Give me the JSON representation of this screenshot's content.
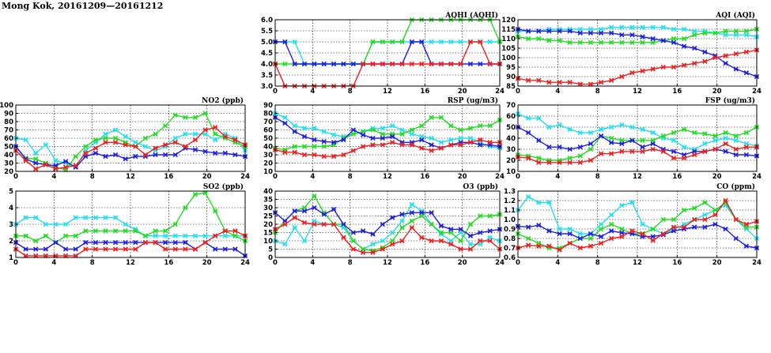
{
  "title": "Mong Kok, 20161209—20161212",
  "colors": {
    "cyan": "#22e0f0",
    "green": "#22dd22",
    "blue": "#2020e0",
    "red": "#ee2020"
  },
  "chart_data": [
    {
      "id": "no2",
      "type": "line",
      "title": "NO2 (ppb)",
      "xlim": [
        0,
        24
      ],
      "ylim": [
        20,
        100
      ],
      "xticks": [
        0,
        4,
        8,
        12,
        16,
        20,
        24
      ],
      "yticks": [
        20,
        30,
        40,
        50,
        60,
        70,
        80,
        90,
        100
      ],
      "grid": true,
      "series": [
        {
          "color": "cyan",
          "values": [
            60,
            58,
            42,
            52,
            33,
            30,
            25,
            45,
            55,
            65,
            70,
            62,
            55,
            50,
            45,
            50,
            60,
            65,
            65,
            65,
            58,
            65,
            60,
            45
          ]
        },
        {
          "color": "green",
          "values": [
            50,
            36,
            35,
            30,
            25,
            22,
            38,
            50,
            58,
            60,
            60,
            55,
            50,
            60,
            65,
            75,
            88,
            85,
            85,
            90,
            65,
            60,
            55,
            50
          ]
        },
        {
          "color": "blue",
          "values": [
            50,
            35,
            30,
            28,
            27,
            32,
            25,
            38,
            42,
            38,
            40,
            35,
            38,
            38,
            40,
            40,
            40,
            48,
            46,
            44,
            42,
            42,
            40,
            38
          ]
        },
        {
          "color": "red",
          "values": [
            45,
            33,
            23,
            28,
            23,
            25,
            27,
            42,
            48,
            55,
            55,
            52,
            50,
            40,
            48,
            52,
            55,
            50,
            58,
            70,
            73,
            62,
            58,
            52
          ]
        }
      ]
    },
    {
      "id": "so2",
      "type": "line",
      "title": "SO2 (ppb)",
      "xlim": [
        0,
        24
      ],
      "ylim": [
        1,
        5
      ],
      "xticks": [
        0,
        4,
        8,
        12,
        16,
        20,
        24
      ],
      "yticks": [
        1,
        2,
        3,
        4,
        5
      ],
      "grid": true,
      "series": [
        {
          "color": "cyan",
          "values": [
            3,
            3.4,
            3.4,
            3,
            3,
            3,
            3.4,
            3.4,
            3.4,
            3.4,
            3.4,
            3,
            2.7,
            2.3,
            2.3,
            2.3,
            2.3,
            2.3,
            2.3,
            2.3,
            2.3,
            2.3,
            2.3,
            2.3
          ]
        },
        {
          "color": "green",
          "values": [
            2.3,
            2.3,
            2,
            2.3,
            1.9,
            2.3,
            2.3,
            2.6,
            2.6,
            2.6,
            2.6,
            2.6,
            2.6,
            2.3,
            2.6,
            2.6,
            3,
            4,
            4.8,
            4.9,
            3.8,
            2.6,
            2.3,
            2
          ]
        },
        {
          "color": "blue",
          "values": [
            1.9,
            1.5,
            1.5,
            1.5,
            1.9,
            1.5,
            1.5,
            1.9,
            1.9,
            1.9,
            1.9,
            1.9,
            1.9,
            1.9,
            1.9,
            1.9,
            1.9,
            1.9,
            1.5,
            1.9,
            1.5,
            1.5,
            1.5,
            1.1
          ]
        },
        {
          "color": "red",
          "values": [
            1.5,
            1.1,
            1.1,
            1.1,
            1.1,
            1.1,
            1.1,
            1.5,
            1.5,
            1.5,
            1.5,
            1.5,
            1.5,
            1.9,
            1.9,
            1.5,
            1.5,
            1.5,
            1.5,
            1.9,
            2.3,
            2.6,
            2.6,
            2.3
          ]
        }
      ]
    },
    {
      "id": "aqhi",
      "type": "line",
      "title": "AQHI (AQHI)",
      "xlim": [
        0,
        24
      ],
      "ylim": [
        3,
        6
      ],
      "xticks": [
        0,
        4,
        8,
        12,
        16,
        20,
        24
      ],
      "yticks": [
        3.0,
        3.5,
        4.0,
        4.5,
        5.0,
        5.5,
        6.0
      ],
      "grid": true,
      "series": [
        {
          "color": "cyan",
          "values": [
            5,
            5,
            5,
            4,
            4,
            4,
            4,
            4,
            4,
            4,
            5,
            5,
            5,
            5,
            5,
            5,
            5,
            5,
            5,
            5,
            5,
            5,
            5,
            5
          ]
        },
        {
          "color": "green",
          "values": [
            4,
            4,
            4,
            4,
            4,
            4,
            4,
            4,
            4,
            4,
            5,
            5,
            5,
            5,
            6,
            6,
            6,
            6,
            6,
            6,
            6,
            6,
            6,
            5
          ]
        },
        {
          "color": "blue",
          "values": [
            5,
            5,
            4,
            4,
            4,
            4,
            4,
            4,
            4,
            4,
            4,
            4,
            4,
            4,
            5,
            5,
            4,
            4,
            4,
            4,
            4,
            4,
            4,
            4
          ]
        },
        {
          "color": "red",
          "values": [
            4,
            3,
            3,
            3,
            3,
            3,
            3,
            3,
            3,
            4,
            4,
            4,
            4,
            4,
            4,
            4,
            4,
            4,
            4,
            4,
            5,
            5,
            4,
            4
          ]
        }
      ]
    },
    {
      "id": "rsp",
      "type": "line",
      "title": "RSP (ug/m3)",
      "xlim": [
        0,
        24
      ],
      "ylim": [
        10,
        90
      ],
      "xticks": [
        0,
        4,
        8,
        12,
        16,
        20,
        24
      ],
      "yticks": [
        10,
        20,
        30,
        40,
        50,
        60,
        70,
        80,
        90
      ],
      "grid": true,
      "series": [
        {
          "color": "cyan",
          "values": [
            80,
            75,
            65,
            62,
            62,
            58,
            54,
            52,
            55,
            58,
            62,
            62,
            65,
            60,
            55,
            52,
            50,
            45,
            48,
            50,
            50,
            45,
            40,
            38
          ]
        },
        {
          "color": "green",
          "values": [
            38,
            36,
            40,
            40,
            40,
            40,
            42,
            50,
            55,
            58,
            60,
            55,
            55,
            55,
            60,
            65,
            75,
            75,
            65,
            60,
            62,
            65,
            65,
            72
          ]
        },
        {
          "color": "blue",
          "values": [
            75,
            68,
            58,
            52,
            48,
            46,
            45,
            48,
            60,
            54,
            50,
            50,
            52,
            45,
            45,
            48,
            42,
            38,
            42,
            45,
            45,
            42,
            42,
            40
          ]
        },
        {
          "color": "red",
          "values": [
            36,
            33,
            33,
            30,
            30,
            28,
            28,
            30,
            35,
            40,
            42,
            42,
            45,
            42,
            42,
            38,
            35,
            38,
            42,
            42,
            45,
            48,
            45,
            45
          ]
        }
      ]
    },
    {
      "id": "o3",
      "type": "line",
      "title": "O3 (ppb)",
      "xlim": [
        0,
        24
      ],
      "ylim": [
        0,
        40
      ],
      "xticks": [
        0,
        4,
        8,
        12,
        16,
        20,
        24
      ],
      "yticks": [
        0,
        5,
        10,
        15,
        20,
        25,
        30,
        35,
        40
      ],
      "grid": true,
      "series": [
        {
          "color": "cyan",
          "values": [
            10,
            8,
            18,
            10,
            22,
            20,
            20,
            18,
            10,
            5,
            8,
            10,
            15,
            22,
            32,
            28,
            20,
            14,
            10,
            15,
            8,
            8,
            12,
            10
          ]
        },
        {
          "color": "green",
          "values": [
            15,
            22,
            28,
            30,
            37,
            27,
            20,
            20,
            10,
            5,
            4,
            6,
            10,
            18,
            22,
            25,
            20,
            15,
            15,
            10,
            20,
            25,
            25,
            26
          ]
        },
        {
          "color": "blue",
          "values": [
            27,
            22,
            28,
            28,
            30,
            26,
            29,
            20,
            15,
            16,
            14,
            20,
            24,
            26,
            27,
            27,
            27,
            19,
            17,
            17,
            13,
            15,
            16,
            17
          ]
        },
        {
          "color": "red",
          "values": [
            17,
            20,
            24,
            21,
            20,
            20,
            20,
            12,
            5,
            3,
            3,
            5,
            8,
            10,
            18,
            12,
            10,
            10,
            8,
            5,
            5,
            10,
            10,
            5
          ]
        }
      ]
    },
    {
      "id": "aqi",
      "type": "line",
      "title": "AQI (AQI)",
      "xlim": [
        0,
        24
      ],
      "ylim": [
        85,
        120
      ],
      "xticks": [
        0,
        4,
        8,
        12,
        16,
        20,
        24
      ],
      "yticks": [
        85,
        90,
        95,
        100,
        105,
        110,
        115,
        120
      ],
      "grid": true,
      "series": [
        {
          "color": "cyan",
          "values": [
            114,
            114,
            114,
            115,
            115,
            115,
            115,
            115,
            115,
            116,
            116,
            116,
            116,
            116,
            116,
            115,
            115,
            114,
            114,
            113,
            112,
            112,
            112,
            111
          ]
        },
        {
          "color": "green",
          "values": [
            111,
            110,
            110,
            109,
            109,
            108,
            108,
            108,
            108,
            108,
            108,
            108,
            108,
            108,
            109,
            110,
            110,
            112,
            113,
            113,
            114,
            114,
            114,
            115
          ]
        },
        {
          "color": "blue",
          "values": [
            115,
            114,
            114,
            114,
            114,
            114,
            113,
            113,
            113,
            113,
            112,
            112,
            111,
            110,
            109,
            108,
            106,
            105,
            103,
            101,
            97,
            94,
            92,
            90
          ]
        },
        {
          "color": "red",
          "values": [
            89,
            88,
            88,
            87,
            87,
            87,
            86,
            86,
            87,
            88,
            90,
            92,
            93,
            94,
            95,
            95,
            96,
            97,
            98,
            100,
            101,
            102,
            103,
            104
          ]
        }
      ]
    },
    {
      "id": "fsp",
      "type": "line",
      "title": "FSP (ug/m3)",
      "xlim": [
        0,
        24
      ],
      "ylim": [
        10,
        70
      ],
      "xticks": [
        0,
        4,
        8,
        12,
        16,
        20,
        24
      ],
      "yticks": [
        10,
        20,
        30,
        40,
        50,
        60,
        70
      ],
      "grid": true,
      "series": [
        {
          "color": "cyan",
          "values": [
            62,
            58,
            58,
            50,
            52,
            48,
            45,
            45,
            48,
            50,
            52,
            50,
            48,
            45,
            40,
            38,
            32,
            30,
            35,
            38,
            40,
            38,
            35,
            33
          ]
        },
        {
          "color": "green",
          "values": [
            25,
            24,
            22,
            20,
            20,
            22,
            24,
            30,
            42,
            40,
            38,
            38,
            38,
            38,
            42,
            45,
            48,
            45,
            44,
            42,
            45,
            42,
            45,
            50
          ]
        },
        {
          "color": "blue",
          "values": [
            50,
            45,
            38,
            32,
            32,
            30,
            32,
            35,
            42,
            36,
            35,
            38,
            32,
            35,
            30,
            28,
            25,
            28,
            28,
            30,
            28,
            25,
            25,
            24
          ]
        },
        {
          "color": "red",
          "values": [
            23,
            22,
            18,
            18,
            18,
            18,
            18,
            20,
            26,
            26,
            28,
            28,
            28,
            30,
            28,
            22,
            22,
            25,
            28,
            30,
            35,
            30,
            32,
            32
          ]
        }
      ]
    },
    {
      "id": "co",
      "type": "line",
      "title": "CO (ppm)",
      "xlim": [
        0,
        24
      ],
      "ylim": [
        0.6,
        1.3
      ],
      "xticks": [
        0,
        4,
        8,
        12,
        16,
        20,
        24
      ],
      "yticks": [
        0.6,
        0.7,
        0.8,
        0.9,
        1.0,
        1.1,
        1.2,
        1.3
      ],
      "grid": true,
      "series": [
        {
          "color": "cyan",
          "values": [
            1.1,
            1.24,
            1.18,
            1.18,
            0.9,
            0.9,
            0.85,
            0.85,
            0.95,
            1.05,
            1.15,
            1.18,
            0.95,
            0.9,
            0.85,
            0.9,
            0.95,
            1.0,
            1.05,
            1.1,
            1.15,
            1.0,
            0.9,
            0.8
          ]
        },
        {
          "color": "green",
          "values": [
            0.85,
            0.8,
            0.75,
            0.7,
            0.7,
            0.75,
            0.8,
            0.8,
            0.9,
            0.95,
            0.9,
            0.85,
            0.85,
            0.9,
            1.0,
            1.0,
            1.1,
            1.12,
            1.18,
            1.1,
            1.18,
            1.0,
            0.92,
            0.92
          ]
        },
        {
          "color": "blue",
          "values": [
            0.93,
            0.92,
            0.94,
            0.88,
            0.85,
            0.85,
            0.8,
            0.85,
            0.82,
            0.88,
            0.86,
            0.85,
            0.82,
            0.82,
            0.84,
            0.88,
            0.9,
            0.92,
            0.92,
            0.95,
            0.9,
            0.8,
            0.72,
            0.7
          ]
        },
        {
          "color": "red",
          "values": [
            0.7,
            0.73,
            0.72,
            0.72,
            0.68,
            0.75,
            0.7,
            0.72,
            0.75,
            0.8,
            0.82,
            0.88,
            0.85,
            0.78,
            0.85,
            0.92,
            0.92,
            1.0,
            1.0,
            1.05,
            1.2,
            1.0,
            0.95,
            0.98
          ]
        }
      ]
    }
  ]
}
